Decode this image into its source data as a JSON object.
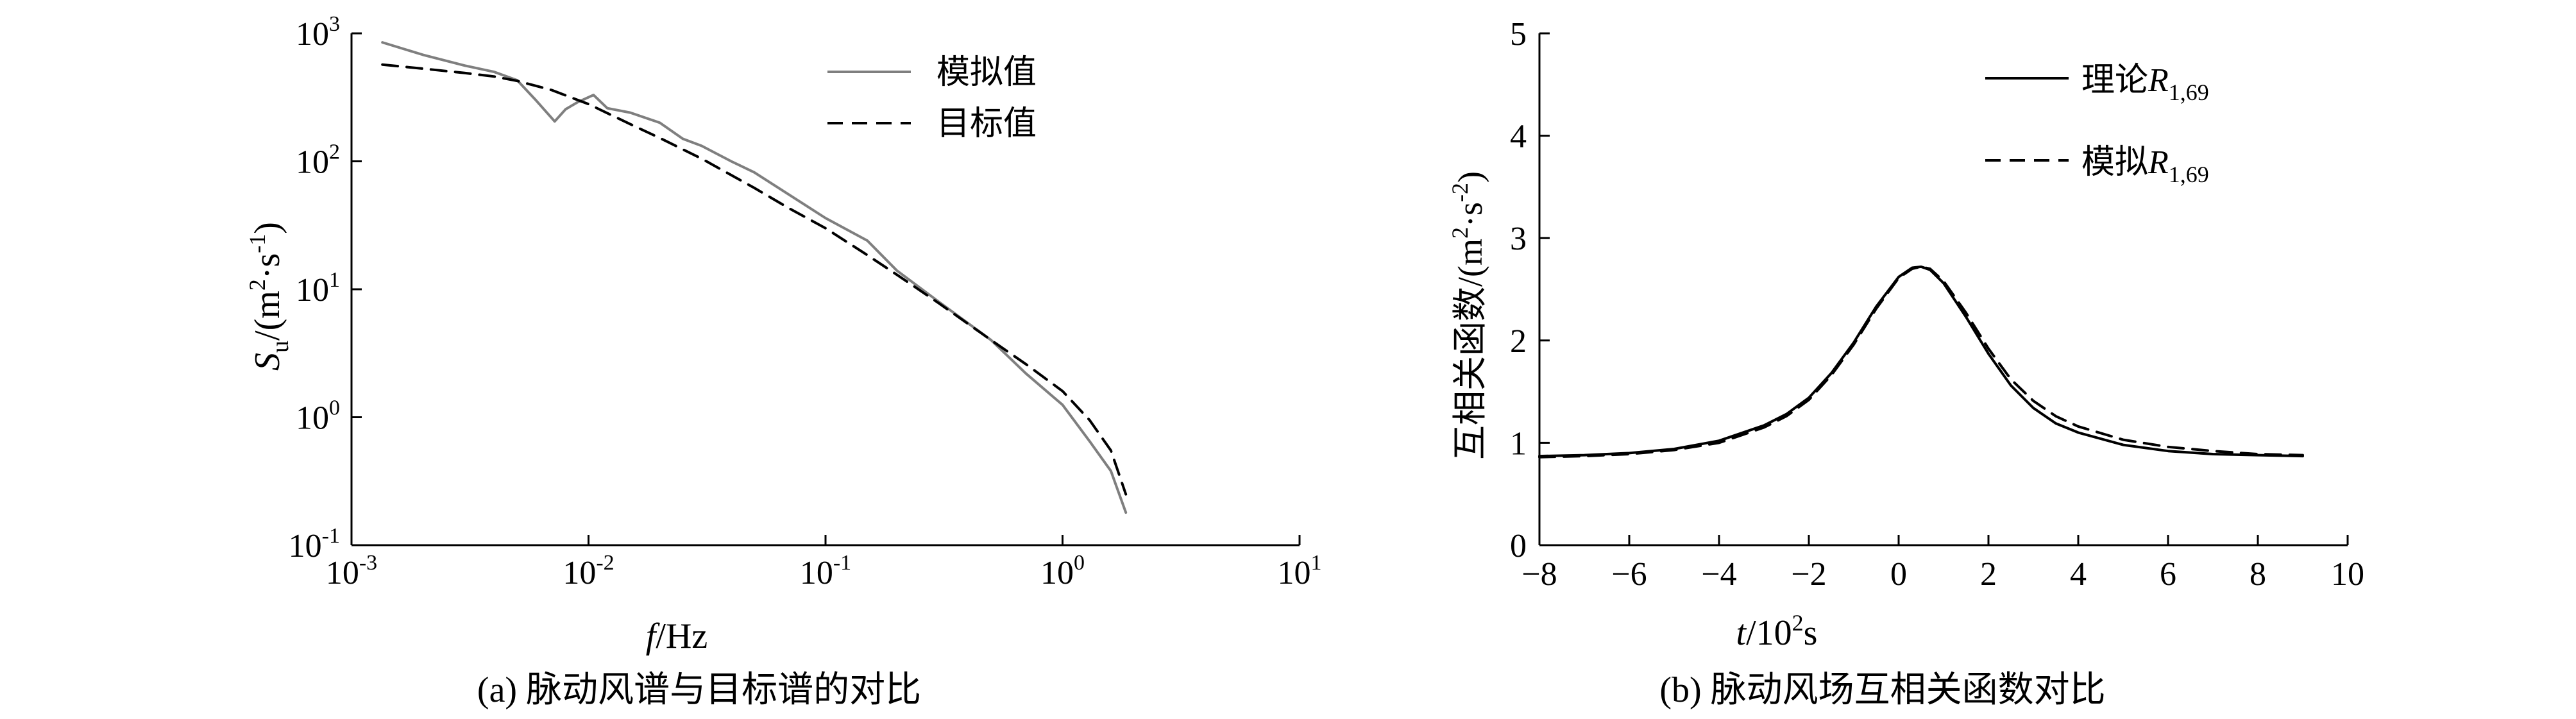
{
  "chart_data": [
    {
      "type": "line",
      "panel_label": "(a)",
      "caption": "脉动风谱与目标谱的对比",
      "x_axis": {
        "scale": "log",
        "range": [
          0.001,
          10
        ],
        "tick_values": [
          0.001,
          0.01,
          0.1,
          1,
          10
        ],
        "tick_labels": [
          {
            "base": "10",
            "exp": "-3"
          },
          {
            "base": "10",
            "exp": "-2"
          },
          {
            "base": "10",
            "exp": "-1"
          },
          {
            "base": "10",
            "exp": "0"
          },
          {
            "base": "10",
            "exp": "1"
          }
        ],
        "label_italic": "f",
        "label_rest": "/Hz"
      },
      "y_axis": {
        "scale": "log",
        "range": [
          0.1,
          1000
        ],
        "tick_values": [
          0.1,
          1,
          10,
          100,
          1000
        ],
        "tick_labels": [
          {
            "base": "10",
            "exp": "-1"
          },
          {
            "base": "10",
            "exp": "0"
          },
          {
            "base": "10",
            "exp": "1"
          },
          {
            "base": "10",
            "exp": "2"
          },
          {
            "base": "10",
            "exp": "3"
          }
        ],
        "label_italic": "S",
        "label_sub": "u",
        "label_units_a": "/(m",
        "label_units_sup1": "2",
        "label_units_b": "·s",
        "label_units_sup2": "-1",
        "label_units_c": ")"
      },
      "legend": {
        "placement": "top-right"
      },
      "grid": false,
      "series": [
        {
          "name": "模拟值",
          "style": "solid",
          "color": "#7f7f7f",
          "x": [
            0.00135,
            0.002,
            0.003,
            0.004,
            0.005,
            0.006,
            0.0072,
            0.008,
            0.009,
            0.0105,
            0.012,
            0.015,
            0.02,
            0.025,
            0.03,
            0.04,
            0.05,
            0.07,
            0.1,
            0.15,
            0.2,
            0.3,
            0.5,
            0.7,
            1.0,
            1.3,
            1.6,
            1.85
          ],
          "y": [
            850,
            680,
            560,
            500,
            430,
            300,
            205,
            255,
            290,
            330,
            260,
            240,
            200,
            150,
            132,
            100,
            82,
            55,
            36,
            24,
            14,
            8.0,
            4.0,
            2.2,
            1.25,
            0.65,
            0.38,
            0.18
          ]
        },
        {
          "name": "目标值",
          "style": "dashed",
          "color": "#000000",
          "x": [
            0.00135,
            0.002,
            0.003,
            0.004,
            0.005,
            0.007,
            0.01,
            0.015,
            0.02,
            0.03,
            0.05,
            0.07,
            0.1,
            0.15,
            0.2,
            0.3,
            0.5,
            0.7,
            1.0,
            1.3,
            1.6,
            1.85
          ],
          "y": [
            570,
            530,
            490,
            460,
            425,
            360,
            280,
            195,
            152,
            105,
            62,
            43,
            30,
            18.5,
            13,
            7.8,
            4.0,
            2.6,
            1.6,
            0.95,
            0.55,
            0.25
          ]
        }
      ]
    },
    {
      "type": "line",
      "panel_label": "(b)",
      "caption": "脉动风场互相关函数对比",
      "x_axis": {
        "scale": "linear",
        "range": [
          -8,
          10
        ],
        "tick_values": [
          -8,
          -6,
          -4,
          -2,
          0,
          2,
          4,
          6,
          8,
          10
        ],
        "tick_labels": [
          "−8",
          "−6",
          "−4",
          "−2",
          "0",
          "2",
          "4",
          "6",
          "8",
          "10"
        ],
        "label_italic": "t",
        "label_a": "/10",
        "label_sup": "2",
        "label_b": "s"
      },
      "y_axis": {
        "scale": "linear",
        "range": [
          0,
          5
        ],
        "tick_values": [
          0,
          1,
          2,
          3,
          4,
          5
        ],
        "tick_labels": [
          "0",
          "1",
          "2",
          "3",
          "4",
          "5"
        ],
        "label_a": "互相关函数/(m",
        "label_sup1": "2",
        "label_b": "·s",
        "label_sup2": "-2",
        "label_c": ")"
      },
      "legend": {
        "placement": "top-right"
      },
      "grid": false,
      "series": [
        {
          "name_prefix": "理论",
          "name_italic": "R",
          "name_sub": "1,69",
          "style": "solid",
          "color": "#000000",
          "x": [
            -8,
            -7,
            -6,
            -5,
            -4,
            -3,
            -2.5,
            -2,
            -1.5,
            -1,
            -0.5,
            0,
            0.3,
            0.5,
            0.7,
            1.0,
            1.5,
            2,
            2.5,
            3,
            3.5,
            4,
            5,
            6,
            7,
            8,
            9
          ],
          "y": [
            0.87,
            0.88,
            0.9,
            0.94,
            1.02,
            1.17,
            1.28,
            1.44,
            1.68,
            1.98,
            2.33,
            2.62,
            2.71,
            2.72,
            2.69,
            2.56,
            2.23,
            1.87,
            1.56,
            1.34,
            1.19,
            1.1,
            0.98,
            0.92,
            0.89,
            0.88,
            0.87
          ]
        },
        {
          "name_prefix": "模拟",
          "name_italic": "R",
          "name_sub": "1,69",
          "style": "dashed",
          "color": "#000000",
          "x": [
            -8,
            -7,
            -6,
            -5,
            -4,
            -3,
            -2.5,
            -2,
            -1.5,
            -1,
            -0.5,
            0,
            0.3,
            0.5,
            0.7,
            1.0,
            1.5,
            2,
            2.5,
            3,
            3.5,
            4,
            5,
            6,
            7,
            8,
            9
          ],
          "y": [
            0.86,
            0.87,
            0.89,
            0.93,
            1.0,
            1.15,
            1.26,
            1.42,
            1.66,
            1.96,
            2.31,
            2.61,
            2.7,
            2.72,
            2.7,
            2.58,
            2.27,
            1.92,
            1.62,
            1.41,
            1.26,
            1.16,
            1.03,
            0.96,
            0.92,
            0.89,
            0.88
          ]
        }
      ]
    }
  ]
}
